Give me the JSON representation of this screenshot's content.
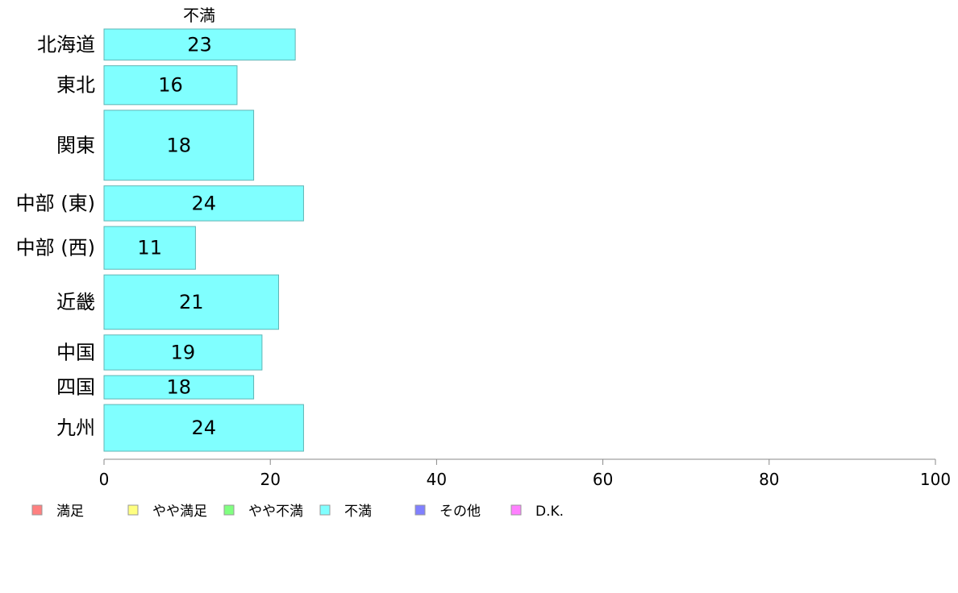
{
  "chart_data": {
    "type": "bar",
    "orientation": "horizontal",
    "series_title": "不満",
    "categories": [
      "北海道",
      "東北",
      "関東",
      "中部 (東)",
      "中部 (西)",
      "近畿",
      "中国",
      "四国",
      "九州"
    ],
    "category_weights": [
      4,
      5,
      9,
      4.5,
      5.5,
      7,
      4.5,
      3,
      6
    ],
    "values": [
      23,
      16,
      18,
      24,
      11,
      21,
      19,
      18,
      24
    ],
    "series": [
      {
        "name": "不満",
        "values": [
          23,
          16,
          18,
          24,
          11,
          21,
          19,
          18,
          24
        ],
        "color": "#80ffff"
      }
    ],
    "xlim": [
      0,
      100
    ],
    "xticks": [
      0,
      20,
      40,
      60,
      80,
      100
    ],
    "grid": false,
    "legend_placement": "bottom",
    "legend": [
      {
        "label": "満足",
        "color": "#ff8080"
      },
      {
        "label": "やや満足",
        "color": "#ffff80"
      },
      {
        "label": "やや不満",
        "color": "#80ff80"
      },
      {
        "label": "不満",
        "color": "#80ffff"
      },
      {
        "label": "その他",
        "color": "#8080ff"
      },
      {
        "label": "D.K.",
        "color": "#ff80ff"
      }
    ],
    "bar_stroke_color": "#5fb5b5"
  }
}
